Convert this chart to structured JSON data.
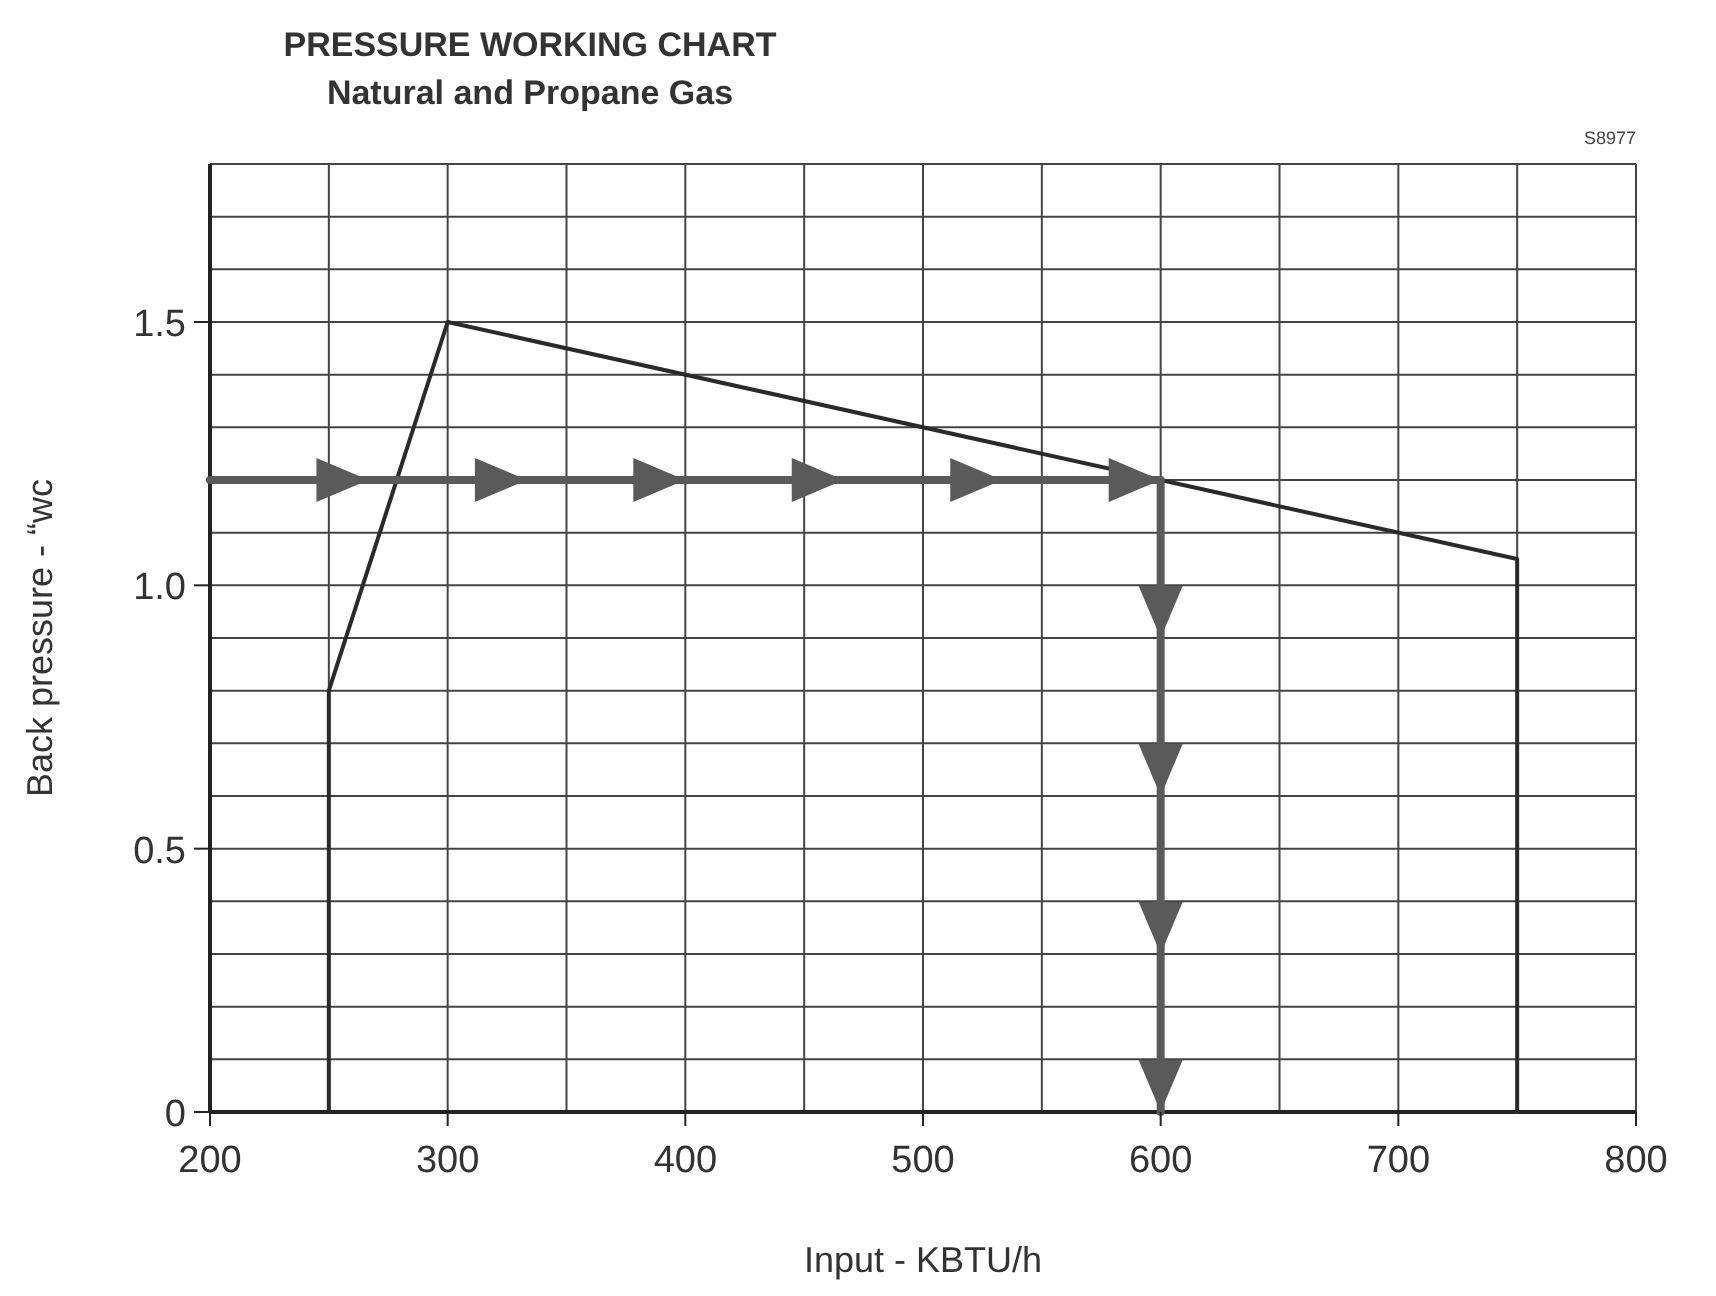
{
  "chart_data": {
    "type": "line",
    "title": "PRESSURE WORKING CHART",
    "subtitle": "Natural and Propane Gas",
    "xlabel": "Input - KBTU/h",
    "ylabel": "Back pressure - “wc",
    "annotations": [
      "S8977"
    ],
    "series": [
      {
        "x": [
          250,
          250,
          300,
          750,
          750
        ],
        "values": [
          0,
          0.8,
          1.5,
          1.05,
          0
        ],
        "color": "#2a2a2a"
      },
      {
        "x": [
          200,
          600,
          600
        ],
        "values": [
          1.2,
          1.2,
          0
        ],
        "color": "#5a5a5a"
      }
    ],
    "xlim": [
      200,
      800
    ],
    "ylim": [
      0,
      1.8
    ],
    "xticks": [
      200,
      {
        "value": 250,
        "label": null
      },
      300,
      {
        "value": 350,
        "label": null
      },
      400,
      {
        "value": 450,
        "label": null
      },
      500,
      {
        "value": 550,
        "label": null
      },
      600,
      {
        "value": 650,
        "label": null
      },
      700,
      {
        "value": 750,
        "label": null
      },
      800
    ],
    "yticks": [
      0,
      {
        "value": 0.1,
        "label": null
      },
      {
        "value": 0.2,
        "label": null
      },
      {
        "value": 0.3,
        "label": null
      },
      {
        "value": 0.4,
        "label": null
      },
      0.5,
      {
        "value": 0.6,
        "label": null
      },
      {
        "value": 0.7,
        "label": null
      },
      {
        "value": 0.8,
        "label": null
      },
      {
        "value": 0.9,
        "label": null
      },
      {
        "value": 1,
        "label": "1.0"
      },
      {
        "value": 1.1,
        "label": null
      },
      {
        "value": 1.2,
        "label": null
      },
      {
        "value": 1.3,
        "label": null
      },
      {
        "value": 1.4,
        "label": null
      },
      1.5,
      {
        "value": 1.6,
        "label": null
      },
      {
        "value": 1.7,
        "label": null
      },
      {
        "value": 1.8,
        "label": null
      }
    ],
    "grid": true,
    "marker": "none",
    "line_style": "solid"
  }
}
